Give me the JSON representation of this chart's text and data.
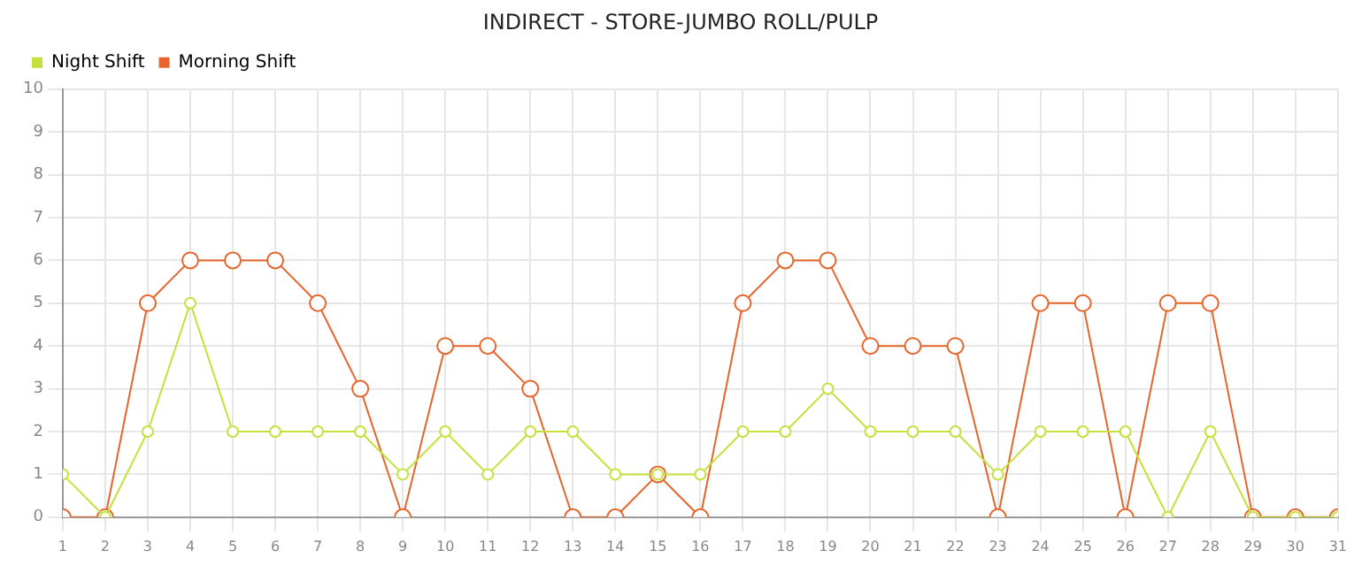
{
  "chart_data": {
    "type": "line",
    "title": "INDIRECT - STORE-JUMBO ROLL/PULP",
    "x": [
      1,
      2,
      3,
      4,
      5,
      6,
      7,
      8,
      9,
      10,
      11,
      12,
      13,
      14,
      15,
      16,
      17,
      18,
      19,
      20,
      21,
      22,
      23,
      24,
      25,
      26,
      27,
      28,
      29,
      30,
      31
    ],
    "series": [
      {
        "name": "Night Shift",
        "color": "#c5e03a",
        "values": [
          1,
          0,
          2,
          5,
          2,
          2,
          2,
          2,
          1,
          2,
          1,
          2,
          2,
          1,
          1,
          1,
          2,
          2,
          3,
          2,
          2,
          2,
          1,
          2,
          2,
          2,
          0,
          2,
          0,
          0,
          0
        ]
      },
      {
        "name": "Morning Shift",
        "color": "#e5652d",
        "values": [
          0,
          0,
          5,
          6,
          6,
          6,
          5,
          3,
          0,
          4,
          4,
          3,
          0,
          0,
          1,
          0,
          5,
          6,
          6,
          4,
          4,
          4,
          0,
          5,
          5,
          0,
          5,
          5,
          0,
          0,
          0
        ]
      }
    ],
    "xlim": [
      1,
      31
    ],
    "xticks": [
      1,
      2,
      3,
      4,
      5,
      6,
      7,
      8,
      9,
      10,
      11,
      12,
      13,
      14,
      15,
      16,
      17,
      18,
      19,
      20,
      21,
      22,
      23,
      24,
      25,
      26,
      27,
      28,
      29,
      30,
      31
    ],
    "ylim": [
      0,
      10
    ],
    "yticks": [
      0,
      1,
      2,
      3,
      4,
      5,
      6,
      7,
      8,
      9,
      10
    ],
    "grid": true,
    "legend": "top left",
    "marker": "circle",
    "line_style": "solid"
  }
}
